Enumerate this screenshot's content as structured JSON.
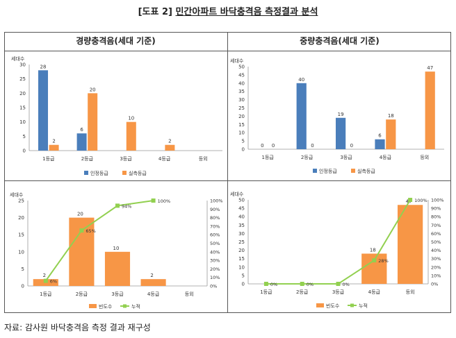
{
  "title_prefix": "[도표 2]",
  "title_main": "민간아파트 바닥충격음 측정결과 분석",
  "left_header": "경량충격음(세대 기준)",
  "right_header": "중량충격음(세대 기준)",
  "source": "자료: 감사원 바닥충격음 측정 결과 재구성",
  "colors": {
    "blue": "#4a7ebb",
    "orange": "#f79646",
    "green": "#92d050"
  },
  "chart_data": [
    {
      "type": "bar",
      "name": "light-grade",
      "ylabel": "세대수",
      "ylim": [
        0,
        30
      ],
      "yticks": [
        0,
        5,
        10,
        15,
        20,
        25,
        30
      ],
      "categories": [
        "1등급",
        "2등급",
        "3등급",
        "4등급",
        "등외"
      ],
      "series": [
        {
          "name": "인정등급",
          "color": "#4a7ebb",
          "values": [
            28,
            6,
            null,
            null,
            null
          ]
        },
        {
          "name": "실측등급",
          "color": "#f79646",
          "values": [
            2,
            20,
            10,
            2,
            null
          ]
        }
      ],
      "legend": "bottom"
    },
    {
      "type": "bar",
      "name": "heavy-grade",
      "ylabel": "세대수",
      "ylim": [
        0,
        50
      ],
      "yticks": [
        0,
        5,
        10,
        15,
        20,
        25,
        30,
        35,
        40,
        45,
        50
      ],
      "categories": [
        "1등급",
        "2등급",
        "3등급",
        "4등급",
        "등외"
      ],
      "series": [
        {
          "name": "인정등급",
          "color": "#4a7ebb",
          "values": [
            0,
            40,
            19,
            6,
            null
          ]
        },
        {
          "name": "실측등급",
          "color": "#f79646",
          "values": [
            0,
            0,
            0,
            18,
            47
          ]
        }
      ],
      "legend": "bottom"
    },
    {
      "type": "bar+line",
      "name": "light-cumulative",
      "ylabel": "세대수",
      "ylim": [
        0,
        25
      ],
      "yticks": [
        0,
        5,
        10,
        15,
        20,
        25
      ],
      "y2lim": [
        0,
        100
      ],
      "y2ticks": [
        "0%",
        "10%",
        "20%",
        "30%",
        "40%",
        "50%",
        "60%",
        "70%",
        "80%",
        "90%",
        "100%"
      ],
      "categories": [
        "1등급",
        "2등급",
        "3등급",
        "4등급",
        "등외"
      ],
      "bars": {
        "name": "빈도수",
        "color": "#f79646",
        "values": [
          2,
          20,
          10,
          2,
          null
        ]
      },
      "line": {
        "name": "누적",
        "color": "#92d050",
        "values": [
          6,
          65,
          94,
          100,
          null
        ],
        "labels": [
          "6%",
          "65%",
          "94%",
          "100%",
          ""
        ]
      },
      "legend": "bottom"
    },
    {
      "type": "bar+line",
      "name": "heavy-cumulative",
      "ylabel": "세대수",
      "ylim": [
        0,
        50
      ],
      "yticks": [
        0,
        5,
        10,
        15,
        20,
        25,
        30,
        35,
        40,
        45,
        50
      ],
      "y2lim": [
        0,
        100
      ],
      "y2ticks": [
        "0%",
        "10%",
        "20%",
        "30%",
        "40%",
        "50%",
        "60%",
        "70%",
        "80%",
        "90%",
        "100%"
      ],
      "categories": [
        "1등급",
        "2등급",
        "3등급",
        "4등급",
        "등외"
      ],
      "bars": {
        "name": "빈도수",
        "color": "#f79646",
        "values": [
          0,
          0,
          0,
          18,
          47
        ]
      },
      "line": {
        "name": "누적",
        "color": "#92d050",
        "values": [
          0,
          0,
          0,
          28,
          100
        ],
        "labels": [
          "0%",
          "0%",
          "0%",
          "28%",
          "100%"
        ]
      },
      "legend": "bottom"
    }
  ]
}
